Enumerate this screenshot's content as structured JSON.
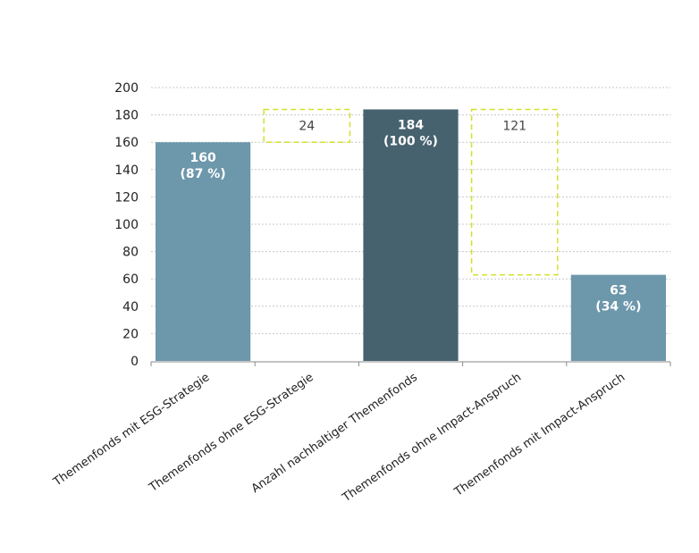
{
  "chart_data": {
    "type": "waterfall",
    "categories": [
      "Themenfonds mit ESG-Strategie",
      "Themenfonds ohne ESG-Strategie",
      "Anzahl nachhaltiger Themenfonds",
      "Themenfonds ohne Impact-Anspruch",
      "Themenfonds mit Impact-Anspruch"
    ],
    "bars": [
      {
        "kind": "solid",
        "base": 0,
        "top": 160,
        "label": "160",
        "sublabel": "(87 %)",
        "color": "#6d97ab"
      },
      {
        "kind": "dashed",
        "base": 160,
        "top": 184,
        "label": "24",
        "sublabel": "",
        "color": "#d4e02a"
      },
      {
        "kind": "solid",
        "base": 0,
        "top": 184,
        "label": "184",
        "sublabel": "(100 %)",
        "color": "#47626f"
      },
      {
        "kind": "dashed",
        "base": 63,
        "top": 184,
        "label": "121",
        "sublabel": "",
        "color": "#d4e02a"
      },
      {
        "kind": "solid",
        "base": 0,
        "top": 63,
        "label": "63",
        "sublabel": "(34 %)",
        "color": "#6d97ab"
      }
    ],
    "yticks": [
      "0",
      "20",
      "40",
      "60",
      "80",
      "100",
      "120",
      "140",
      "160",
      "180",
      "200"
    ],
    "ylim": [
      0,
      200
    ],
    "grid": true,
    "title": "",
    "xlabel": "",
    "ylabel": ""
  }
}
